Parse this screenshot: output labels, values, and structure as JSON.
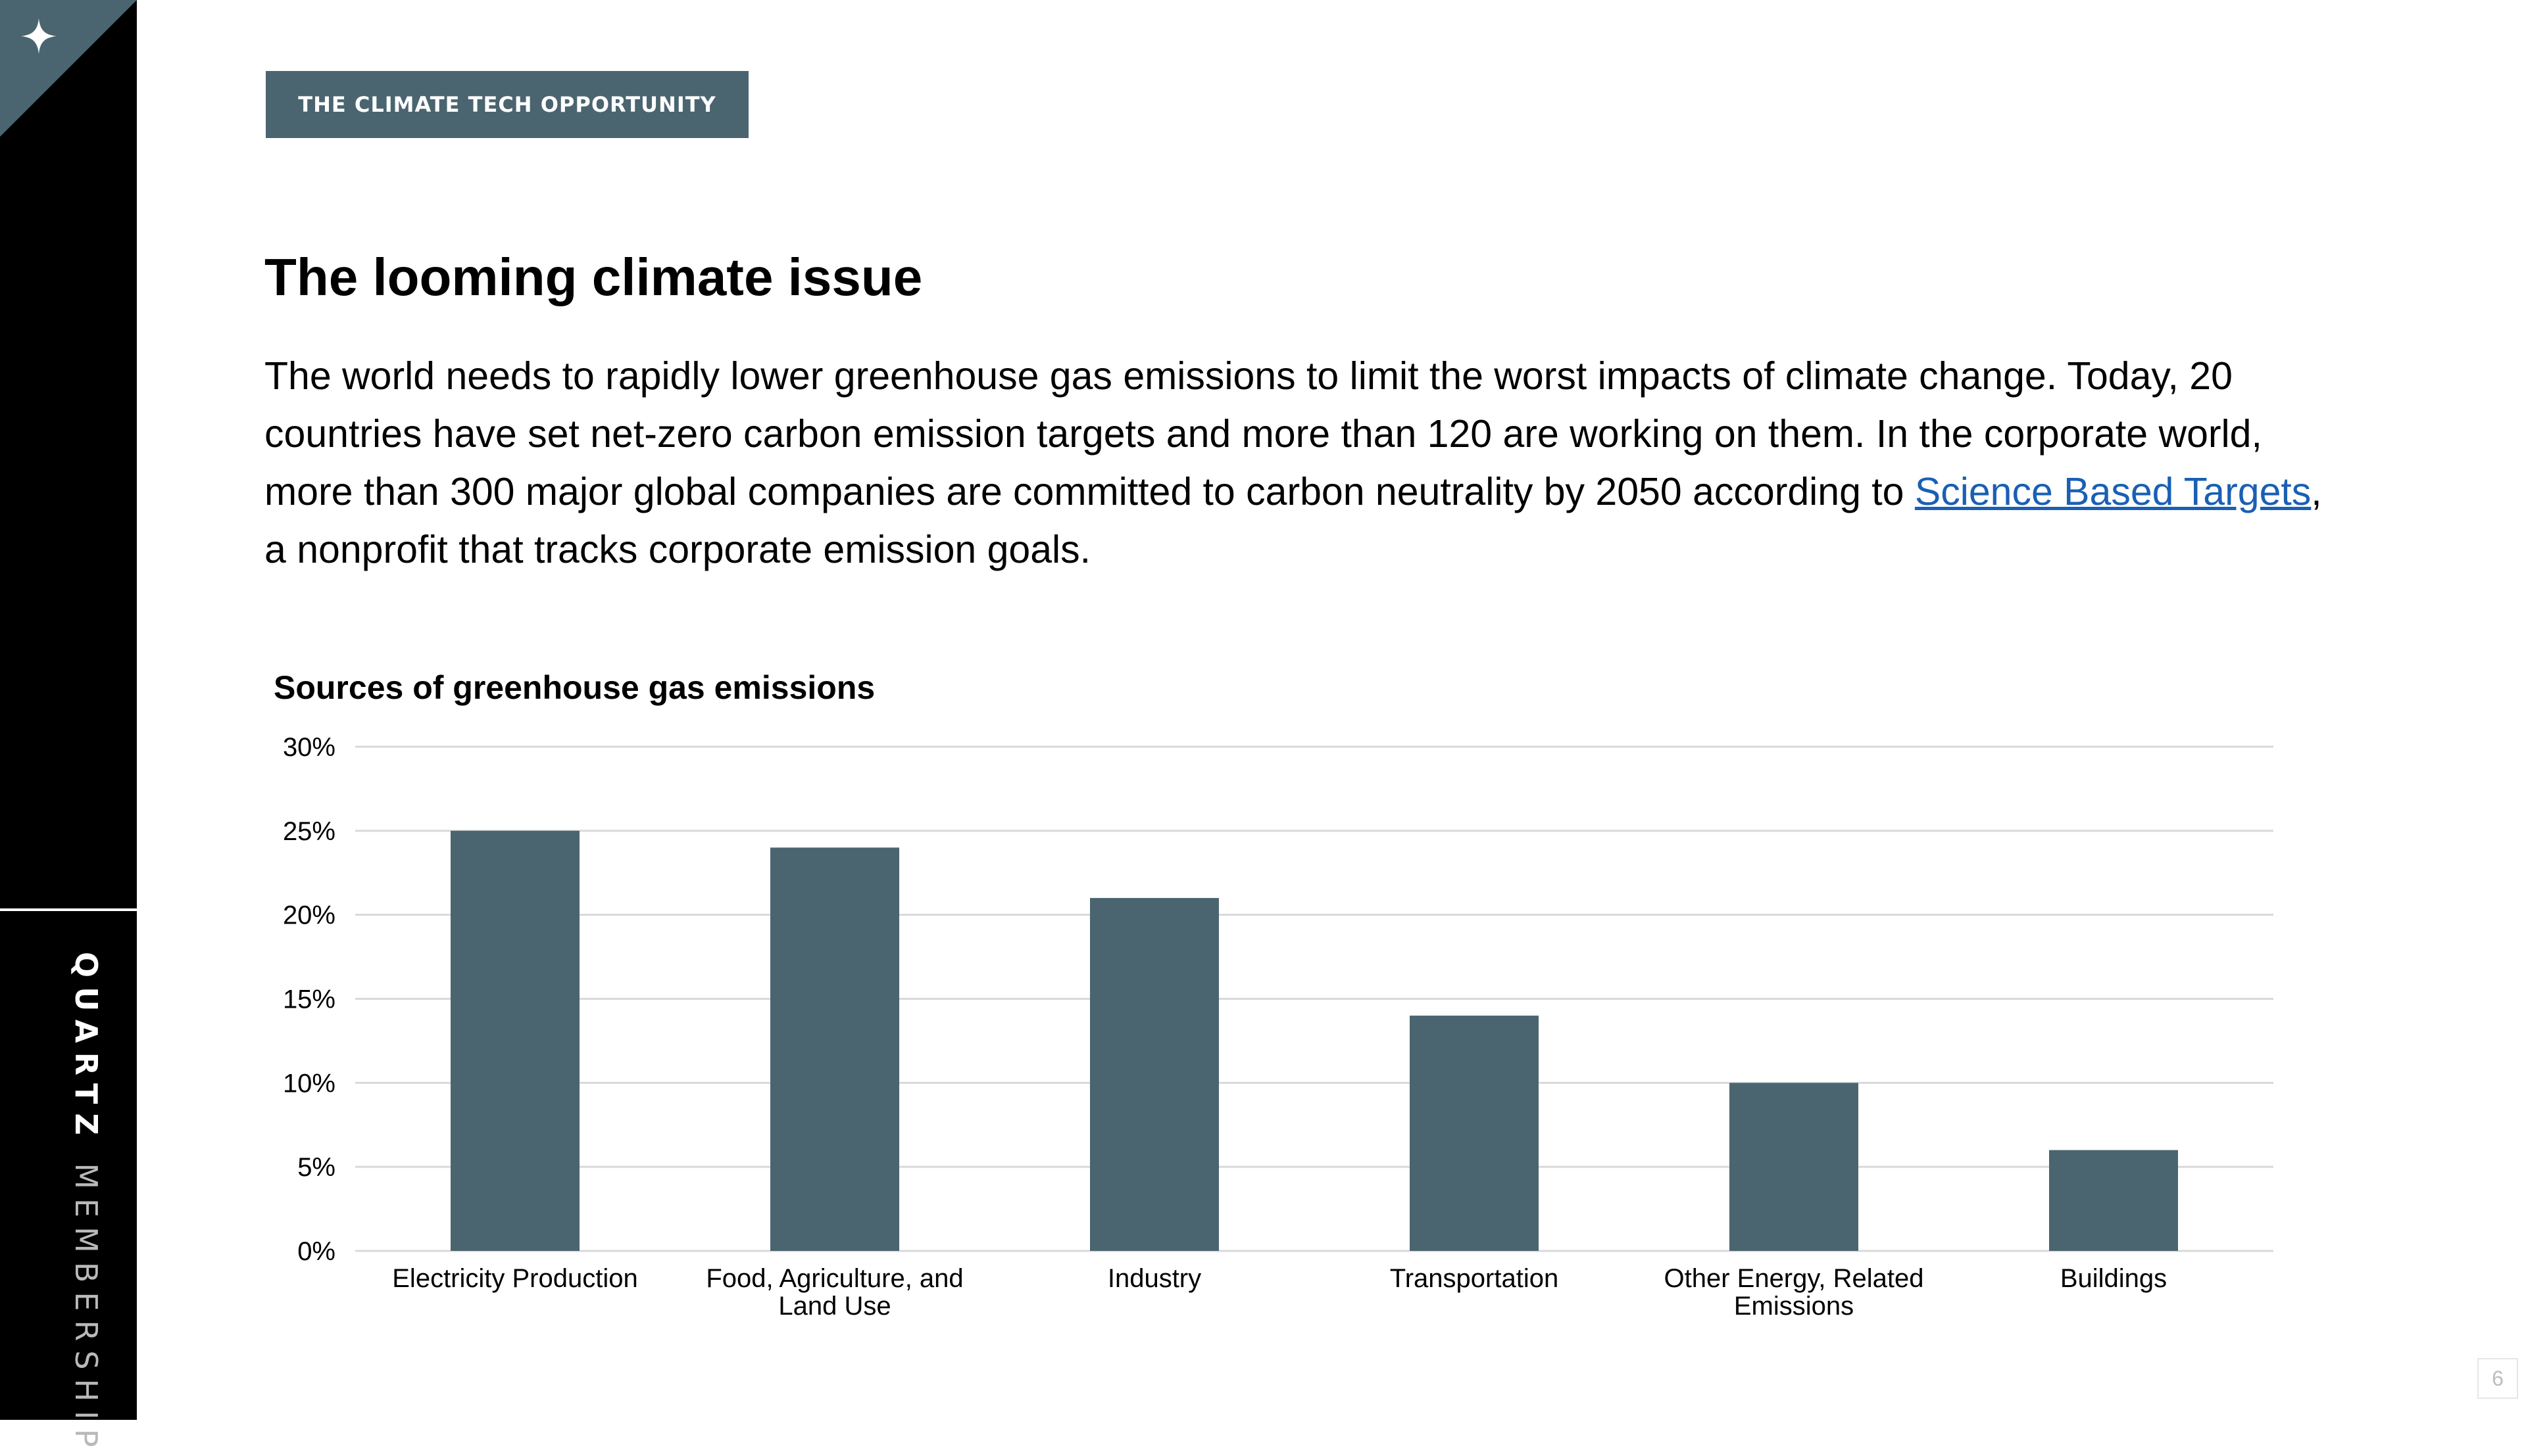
{
  "brand": {
    "name_strong": "QUARTZ",
    "name_light": "MEMBERSHIP",
    "logo_icon": "sparkle-icon"
  },
  "colors": {
    "accent": "#4a6570",
    "link": "#1a5fb4",
    "rail": "#000000"
  },
  "header": {
    "section_tag": "THE CLIMATE TECH OPPORTUNITY"
  },
  "main": {
    "title": "The looming climate issue",
    "paragraph_before_link": "The world needs to rapidly lower greenhouse gas emissions to limit the worst impacts of climate change. Today, 20 countries have set net-zero carbon emission targets and more than 120 are working on them. In the corporate world, more than 300 major global companies are committed to carbon neutrality by 2050 according to ",
    "link_text": "Science Based Targets",
    "paragraph_after_link": ", a nonprofit that tracks corporate emission goals."
  },
  "chart_data": {
    "type": "bar",
    "title": "Sources of greenhouse gas emissions",
    "xlabel": "",
    "ylabel": "",
    "categories": [
      "Electricity Production",
      "Food, Agriculture, and Land Use",
      "Industry",
      "Transportation",
      "Other Energy, Related Emissions",
      "Buildings"
    ],
    "category_label_lines": [
      [
        "Electricity Production"
      ],
      [
        "Food, Agriculture, and",
        "Land Use"
      ],
      [
        "Industry"
      ],
      [
        "Transportation"
      ],
      [
        "Other Energy, Related",
        "Emissions"
      ],
      [
        "Buildings"
      ]
    ],
    "values": [
      25,
      24,
      21,
      14,
      10,
      6
    ],
    "unit": "%",
    "ylim": [
      0,
      30
    ],
    "yticks": [
      0,
      5,
      10,
      15,
      20,
      25,
      30
    ],
    "ytick_labels": [
      "0%",
      "5%",
      "10%",
      "15%",
      "20%",
      "25%",
      "30%"
    ],
    "grid": true,
    "legend": "none",
    "bar_color": "#4a6570"
  },
  "footer": {
    "page_number": "6"
  }
}
